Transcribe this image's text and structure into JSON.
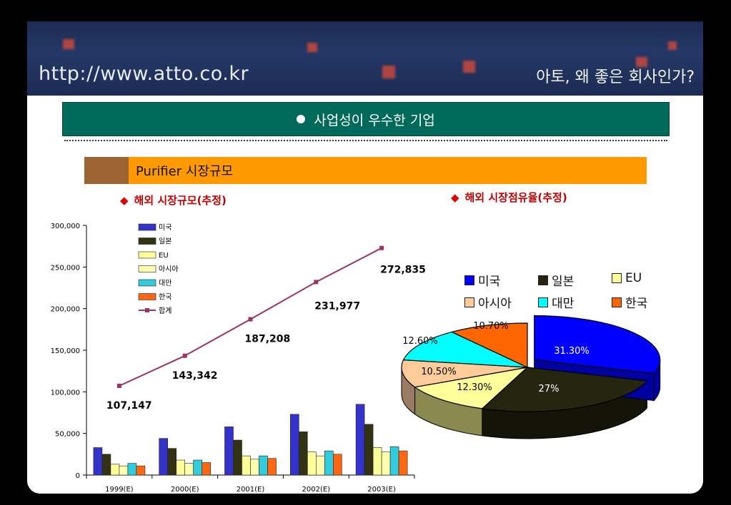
{
  "header": {
    "url": "http://www.atto.co.kr",
    "tagline": "아토, 왜 좋은 회사인가?"
  },
  "section_title": "사업성이 우수한 기업",
  "subtitle": "Purifier 시장규모",
  "left_title": "해외 시장규모(추정)",
  "right_title": "해외 시장점유율(추정)",
  "colors": {
    "미국": "#3333cc",
    "일본": "#333314",
    "EU": "#ffff99",
    "아시아": "#ffffb0",
    "대만": "#33ccdd",
    "한국": "#ff6611",
    "합계": "#993366"
  },
  "chart_data": [
    {
      "type": "bar",
      "title": "해외 시장규모(추정)",
      "categories": [
        "1999(E)",
        "2000(E)",
        "2001(E)",
        "2002(E)",
        "2003(E)"
      ],
      "ylim": [
        0,
        300000
      ],
      "yticks": [
        "0",
        "50,000",
        "100,000",
        "150,000",
        "200,000",
        "250,000",
        "300,000"
      ],
      "ytick_values": [
        0,
        50000,
        100000,
        150000,
        200000,
        250000,
        300000
      ],
      "series": [
        {
          "name": "미국",
          "values": [
            33000,
            44000,
            58000,
            73000,
            85000
          ]
        },
        {
          "name": "일본",
          "values": [
            25000,
            32000,
            42000,
            52000,
            61000
          ]
        },
        {
          "name": "EU",
          "values": [
            13000,
            18000,
            23000,
            28000,
            33000
          ]
        },
        {
          "name": "아시아",
          "values": [
            11000,
            14000,
            19000,
            23000,
            28000
          ]
        },
        {
          "name": "대만",
          "values": [
            14000,
            18000,
            23000,
            29000,
            34000
          ]
        },
        {
          "name": "한국",
          "values": [
            11000,
            15000,
            20000,
            25000,
            29000
          ]
        }
      ],
      "line_series": {
        "name": "합계",
        "values": [
          107147,
          143342,
          187208,
          231977,
          272835
        ],
        "labels": [
          "107,147",
          "143,342",
          "187,208",
          "231,977",
          "272,835"
        ]
      },
      "legend": "top-left",
      "grid": false
    },
    {
      "type": "pie",
      "title": "해외 시장점유율(추정)",
      "labels": [
        "미국",
        "일본",
        "EU",
        "아시아",
        "대만",
        "한국"
      ],
      "values": [
        31.3,
        27.0,
        12.3,
        10.5,
        12.6,
        10.7
      ],
      "value_labels": [
        "31.30%",
        "27%",
        "12.30%",
        "10.50%",
        "12.60%",
        "10.70%"
      ],
      "exploded": "미국",
      "legend": "top"
    }
  ]
}
